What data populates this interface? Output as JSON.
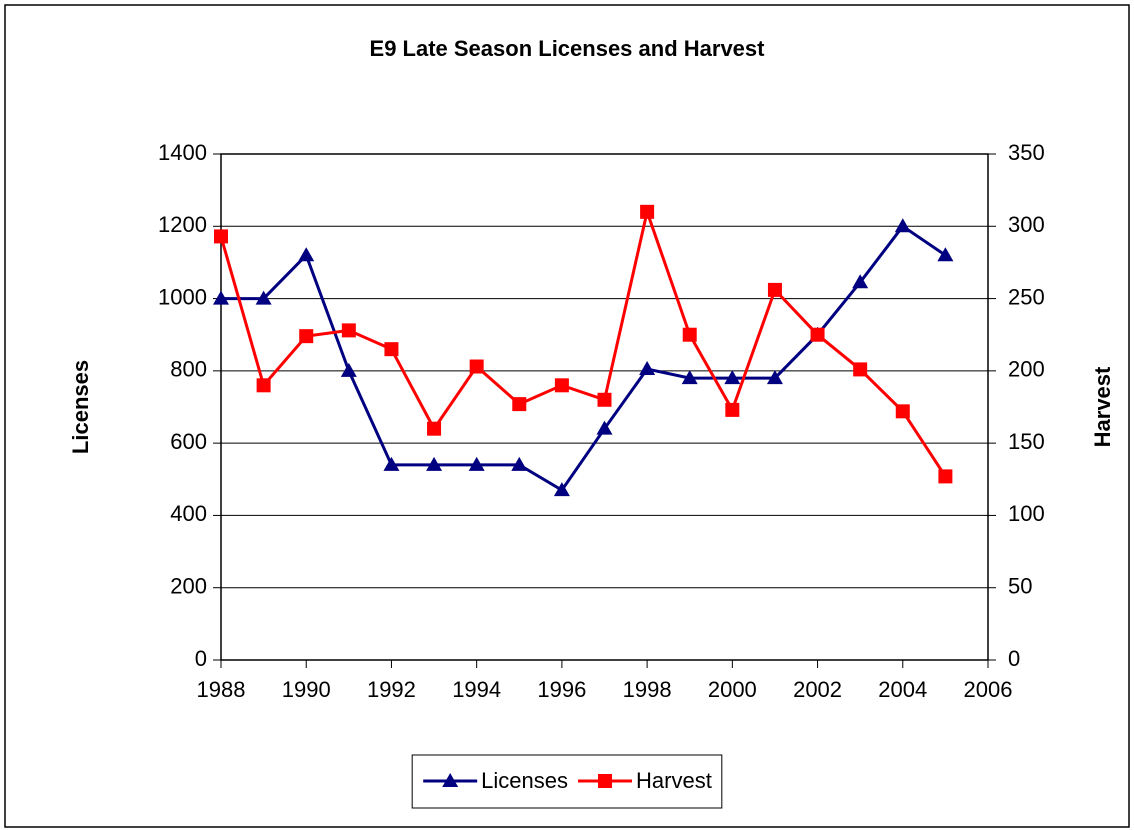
{
  "chart_data": {
    "type": "line",
    "title": "E9 Late Season Licenses and Harvest",
    "ylabel": "Licenses",
    "y2label": "Harvest",
    "x": [
      1988,
      1989,
      1990,
      1991,
      1992,
      1993,
      1994,
      1995,
      1996,
      1997,
      1998,
      1999,
      2000,
      2001,
      2002,
      2003,
      2004,
      2005
    ],
    "series": [
      {
        "name": "Licenses",
        "color": "#000080",
        "marker": "triangle",
        "axis": "y",
        "values": [
          1000,
          1000,
          1120,
          800,
          540,
          540,
          540,
          540,
          470,
          640,
          805,
          780,
          780,
          780,
          900,
          1045,
          1200,
          1120
        ]
      },
      {
        "name": "Harvest",
        "color": "#ff0000",
        "marker": "square",
        "axis": "y2",
        "values": [
          293,
          190,
          224,
          228,
          215,
          160,
          203,
          177,
          190,
          180,
          310,
          225,
          173,
          256,
          225,
          201,
          172,
          127
        ]
      }
    ],
    "xlim": [
      1988,
      2006
    ],
    "xticks": [
      1988,
      1990,
      1992,
      1994,
      1996,
      1998,
      2000,
      2002,
      2004,
      2006
    ],
    "ylim": [
      0,
      1400
    ],
    "yticks": [
      0,
      200,
      400,
      600,
      800,
      1000,
      1200,
      1400
    ],
    "y2lim": [
      0,
      350
    ],
    "y2ticks": [
      0,
      50,
      100,
      150,
      200,
      250,
      300,
      350
    ],
    "grid": true,
    "legend": "bottom"
  }
}
